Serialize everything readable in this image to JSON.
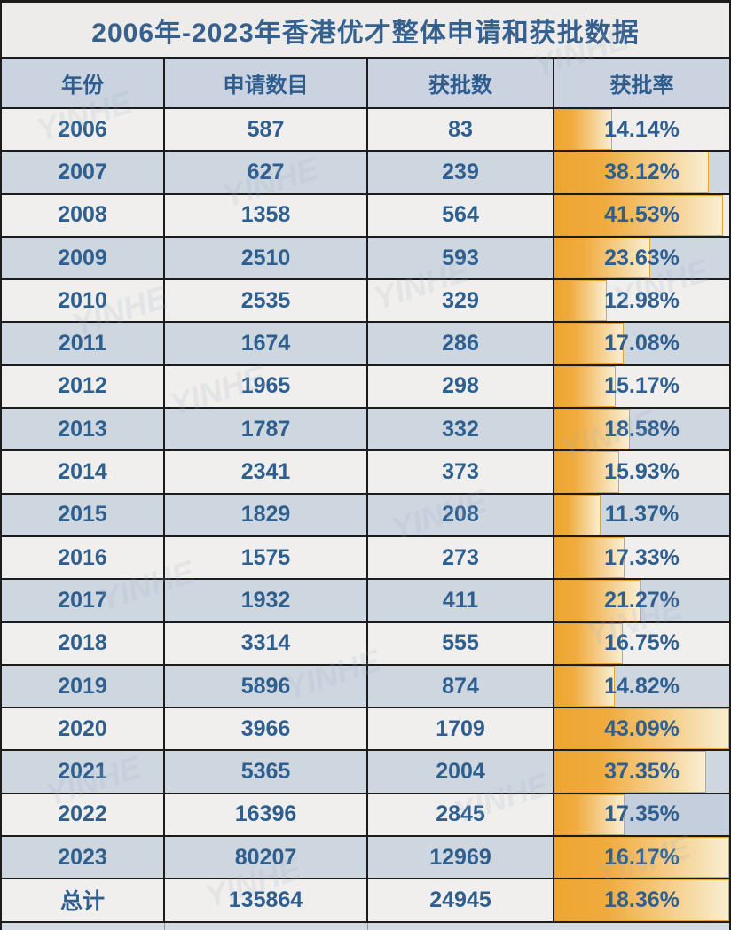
{
  "chart_data": {
    "type": "table",
    "title": "2006年-2023年香港优才整体申请和获批数据",
    "columns": [
      "年份",
      "申请数目",
      "获批数",
      "获批率"
    ],
    "bar_full_scale_percent": 43.09,
    "rows": [
      {
        "year": "2006",
        "applications": "587",
        "approved": "83",
        "rate": "14.14%"
      },
      {
        "year": "2007",
        "applications": "627",
        "approved": "239",
        "rate": "38.12%"
      },
      {
        "year": "2008",
        "applications": "1358",
        "approved": "564",
        "rate": "41.53%"
      },
      {
        "year": "2009",
        "applications": "2510",
        "approved": "593",
        "rate": "23.63%"
      },
      {
        "year": "2010",
        "applications": "2535",
        "approved": "329",
        "rate": "12.98%"
      },
      {
        "year": "2011",
        "applications": "1674",
        "approved": "286",
        "rate": "17.08%"
      },
      {
        "year": "2012",
        "applications": "1965",
        "approved": "298",
        "rate": "15.17%"
      },
      {
        "year": "2013",
        "applications": "1787",
        "approved": "332",
        "rate": "18.58%"
      },
      {
        "year": "2014",
        "applications": "2341",
        "approved": "373",
        "rate": "15.93%"
      },
      {
        "year": "2015",
        "applications": "1829",
        "approved": "208",
        "rate": "11.37%"
      },
      {
        "year": "2016",
        "applications": "1575",
        "approved": "273",
        "rate": "17.33%"
      },
      {
        "year": "2017",
        "applications": "1932",
        "approved": "411",
        "rate": "21.27%"
      },
      {
        "year": "2018",
        "applications": "3314",
        "approved": "555",
        "rate": "16.75%"
      },
      {
        "year": "2019",
        "applications": "5896",
        "approved": "874",
        "rate": "14.82%"
      },
      {
        "year": "2020",
        "applications": "3966",
        "approved": "1709",
        "rate": "43.09%"
      },
      {
        "year": "2021",
        "applications": "5365",
        "approved": "2004",
        "rate": "37.35%"
      },
      {
        "year": "2022",
        "applications": "16396",
        "approved": "2845",
        "rate": "17.35%",
        "rate_cell_dark": true
      },
      {
        "year": "2023",
        "applications": "80207",
        "approved": "12969",
        "rate": "16.17%",
        "full_bar": true
      },
      {
        "year": "总计",
        "applications": "135864",
        "approved": "24945",
        "rate": "18.36%",
        "full_bar": true
      }
    ]
  },
  "watermark_text": "YINHE",
  "colors": {
    "title_text": "#36618f",
    "cell_text": "#2f5f8f",
    "header_bg": "#cad3df",
    "row_light_bg": "#f0efed",
    "row_dark_bg": "#ced6e0",
    "bar_orange": "#f0ab3e",
    "bar_fade": "#f9eed2",
    "bar_border": "#e6a433",
    "grid_border": "#1c1c1c"
  }
}
